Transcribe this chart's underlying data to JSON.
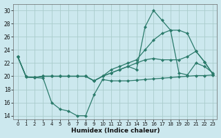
{
  "xlabel": "Humidex (Indice chaleur)",
  "xlim": [
    -0.5,
    23.5
  ],
  "ylim": [
    13.5,
    31
  ],
  "yticks": [
    14,
    16,
    18,
    20,
    22,
    24,
    26,
    28,
    30
  ],
  "xticks": [
    0,
    1,
    2,
    3,
    4,
    5,
    6,
    7,
    8,
    9,
    10,
    11,
    12,
    13,
    14,
    15,
    16,
    17,
    18,
    19,
    20,
    21,
    22,
    23
  ],
  "bg_color": "#cce8ee",
  "grid_color": "#aacccc",
  "line_color": "#2a7a6a",
  "lines": [
    {
      "x": [
        0,
        1,
        2,
        3,
        4,
        5,
        6,
        7,
        8,
        9,
        10,
        11,
        12,
        13,
        14,
        15,
        16,
        17,
        18,
        19,
        20,
        21,
        22,
        23
      ],
      "y": [
        23,
        19.9,
        19.8,
        19.7,
        16.0,
        15.0,
        14.7,
        14.0,
        14.0,
        17.2,
        19.5,
        19.3,
        19.3,
        19.3,
        19.4,
        19.5,
        19.6,
        19.7,
        19.8,
        19.9,
        20.0,
        20.1,
        20.1,
        20.2
      ]
    },
    {
      "x": [
        0,
        1,
        2,
        3,
        4,
        5,
        6,
        7,
        8,
        9,
        10,
        11,
        12,
        13,
        14,
        15,
        16,
        17,
        18,
        19,
        20,
        21,
        22,
        23
      ],
      "y": [
        23,
        19.9,
        19.8,
        20.0,
        20.0,
        20.0,
        20.0,
        20.0,
        20.0,
        19.3,
        20.0,
        20.5,
        21.0,
        21.5,
        21.0,
        27.5,
        30.0,
        28.5,
        27.0,
        20.5,
        20.2,
        22.0,
        21.5,
        20.5
      ]
    },
    {
      "x": [
        0,
        1,
        2,
        3,
        4,
        5,
        6,
        7,
        8,
        9,
        10,
        11,
        12,
        13,
        14,
        15,
        16,
        17,
        18,
        19,
        20,
        21,
        22,
        23
      ],
      "y": [
        23,
        19.9,
        19.8,
        20.0,
        20.0,
        20.0,
        20.0,
        20.0,
        20.0,
        19.3,
        20.0,
        21.0,
        21.5,
        22.0,
        22.5,
        24.0,
        25.5,
        26.5,
        27.0,
        27.0,
        26.5,
        23.8,
        22.2,
        20.3
      ]
    },
    {
      "x": [
        0,
        1,
        2,
        3,
        4,
        5,
        6,
        7,
        8,
        9,
        10,
        11,
        12,
        13,
        14,
        15,
        16,
        17,
        18,
        19,
        20,
        21,
        22,
        23
      ],
      "y": [
        23,
        19.9,
        19.8,
        20.0,
        20.0,
        20.0,
        20.0,
        20.0,
        20.0,
        19.3,
        20.0,
        20.5,
        21.0,
        21.5,
        22.0,
        22.5,
        22.7,
        22.5,
        22.5,
        22.5,
        23.0,
        23.8,
        22.2,
        20.3
      ]
    }
  ]
}
